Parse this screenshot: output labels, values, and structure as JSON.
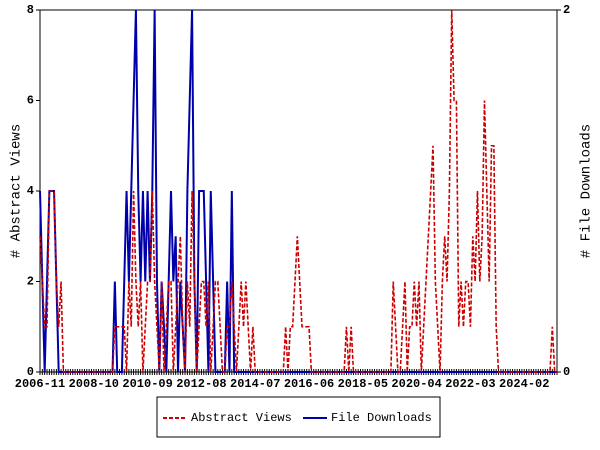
{
  "chart_data": {
    "type": "line",
    "y_label": "# Abstract Views",
    "y2_label": "# File Downloads",
    "categories": [
      "2006-11",
      null,
      null,
      null,
      null,
      null,
      null,
      null,
      null,
      null,
      null,
      null,
      null,
      null,
      null,
      null,
      null,
      null,
      null,
      null,
      null,
      null,
      null,
      "2008-10",
      null,
      null,
      null,
      null,
      null,
      null,
      null,
      null,
      null,
      null,
      null,
      null,
      null,
      null,
      null,
      null,
      null,
      null,
      null,
      null,
      null,
      null,
      "2010-09",
      null,
      null,
      null,
      null,
      null,
      null,
      null,
      null,
      null,
      null,
      null,
      null,
      null,
      null,
      null,
      null,
      null,
      null,
      null,
      null,
      null,
      null,
      "2012-08",
      null,
      null,
      null,
      null,
      null,
      null,
      null,
      null,
      null,
      null,
      null,
      null,
      null,
      null,
      null,
      null,
      null,
      null,
      null,
      null,
      null,
      null,
      "2014-07",
      null,
      null,
      null,
      null,
      null,
      null,
      null,
      null,
      null,
      null,
      null,
      null,
      null,
      null,
      null,
      null,
      null,
      null,
      null,
      null,
      null,
      null,
      "2016-06",
      null,
      null,
      null,
      null,
      null,
      null,
      null,
      null,
      null,
      null,
      null,
      null,
      null,
      null,
      null,
      null,
      null,
      null,
      null,
      null,
      null,
      null,
      "2018-05",
      null,
      null,
      null,
      null,
      null,
      null,
      null,
      null,
      null,
      null,
      null,
      null,
      null,
      null,
      null,
      null,
      null,
      null,
      null,
      null,
      null,
      null,
      "2020-04",
      null,
      null,
      null,
      null,
      null,
      null,
      null,
      null,
      null,
      null,
      null,
      null,
      null,
      null,
      null,
      null,
      null,
      null,
      null,
      null,
      null,
      null,
      "2022-03",
      null,
      null,
      null,
      null,
      null,
      null,
      null,
      null,
      null,
      null,
      null,
      null,
      null,
      null,
      null,
      null,
      null,
      null,
      null,
      null,
      null,
      null,
      "2024-02",
      null,
      null,
      null,
      null,
      null,
      null,
      null,
      null,
      null,
      null,
      null,
      null,
      null,
      null
    ],
    "series": [
      {
        "name": "Abstract Views",
        "color": "#cc0000",
        "dash": true,
        "values": [
          3,
          2,
          1,
          1,
          4,
          4,
          4,
          2,
          1,
          2,
          0,
          0,
          0,
          0,
          0,
          0,
          0,
          0,
          0,
          0,
          0,
          0,
          0,
          0,
          0,
          0,
          0,
          0,
          0,
          0,
          0,
          0,
          1,
          1,
          1,
          1,
          1,
          0,
          2,
          1,
          4,
          2,
          1,
          2,
          0,
          1,
          2,
          2,
          4,
          2,
          1,
          0,
          2,
          0,
          1,
          2,
          2,
          0,
          1,
          2,
          3,
          1,
          0,
          2,
          1,
          4,
          2,
          0,
          1,
          2,
          2,
          1,
          2,
          0,
          1,
          2,
          2,
          1,
          0,
          0,
          1,
          1,
          2,
          1,
          0,
          1,
          2,
          1,
          2,
          1,
          0,
          1,
          0,
          0,
          0,
          0,
          0,
          0,
          0,
          0,
          0,
          0,
          0,
          0,
          0,
          1,
          0,
          1,
          1,
          2,
          3,
          2,
          1,
          1,
          1,
          1,
          0,
          0,
          0,
          0,
          0,
          0,
          0,
          0,
          0,
          0,
          0,
          0,
          0,
          0,
          0,
          1,
          0,
          1,
          0,
          0,
          0,
          0,
          0,
          0,
          0,
          0,
          0,
          0,
          0,
          0,
          0,
          0,
          0,
          0,
          0,
          2,
          1,
          0,
          0,
          1,
          2,
          0,
          1,
          1,
          2,
          1,
          2,
          0,
          1,
          2,
          3,
          4,
          5,
          2,
          1,
          0,
          2,
          3,
          2,
          4,
          8,
          6,
          6,
          1,
          2,
          1,
          2,
          2,
          1,
          3,
          2,
          4,
          2,
          3,
          6,
          4,
          2,
          5,
          5,
          1,
          0,
          0,
          0,
          0,
          0,
          0,
          0,
          0,
          0,
          0,
          0,
          0,
          0,
          0,
          0,
          0,
          0,
          0,
          0,
          0,
          0,
          0,
          0,
          1,
          0,
          0
        ]
      },
      {
        "name": "File Downloads",
        "color": "#0000aa",
        "axis": "y2",
        "values": [
          1,
          0.5,
          0,
          0.5,
          1,
          1,
          1,
          0.5,
          0,
          0,
          0,
          0,
          0,
          0,
          0,
          0,
          0,
          0,
          0,
          0,
          0,
          0,
          0,
          0,
          0,
          0,
          0,
          0,
          0,
          0,
          0,
          0,
          0.5,
          0,
          0,
          0,
          0.5,
          1,
          0.5,
          1,
          1.5,
          2,
          1,
          0.5,
          1,
          0.5,
          1,
          0.5,
          1,
          2,
          0.5,
          0,
          0.5,
          0.25,
          0,
          0.5,
          1,
          0.5,
          0.75,
          0,
          0.5,
          0.25,
          0,
          1,
          1.5,
          2,
          0.5,
          0,
          1,
          1,
          1,
          0.5,
          0,
          1,
          0.5,
          0,
          0,
          0,
          0,
          0,
          0.5,
          0,
          1,
          0,
          0,
          0,
          0,
          0,
          0,
          0,
          0,
          0,
          0,
          0,
          0,
          0,
          0,
          0,
          0,
          0,
          0,
          0,
          0,
          0,
          0,
          0,
          0,
          0,
          0,
          0,
          0,
          0,
          0,
          0,
          0,
          0,
          0,
          0,
          0,
          0,
          0,
          0,
          0,
          0,
          0,
          0,
          0,
          0,
          0,
          0,
          0,
          0,
          0,
          0,
          0,
          0,
          0,
          0,
          0,
          0,
          0,
          0,
          0,
          0,
          0,
          0,
          0,
          0,
          0,
          0,
          0,
          0,
          0,
          0,
          0,
          0,
          0,
          0,
          0,
          0,
          0,
          0,
          0,
          0,
          0,
          0,
          0,
          0,
          0,
          0,
          0,
          0,
          0,
          0,
          0,
          0,
          0,
          0,
          0,
          0,
          0,
          0,
          0,
          0,
          0,
          0,
          0,
          0,
          0,
          0,
          0,
          0,
          0,
          0,
          0,
          0,
          0,
          0,
          0,
          0,
          0,
          0,
          0,
          0,
          0,
          0,
          0,
          0,
          0,
          0,
          0,
          0,
          0,
          0,
          0,
          0,
          0,
          0,
          0,
          0,
          0,
          0
        ]
      }
    ],
    "ylim": [
      0,
      8
    ],
    "yticks": [
      0,
      2,
      4,
      6,
      8
    ],
    "y2lim": [
      0,
      2
    ],
    "y2ticks": [
      0,
      2
    ],
    "grid": false,
    "legend": "bottom"
  }
}
